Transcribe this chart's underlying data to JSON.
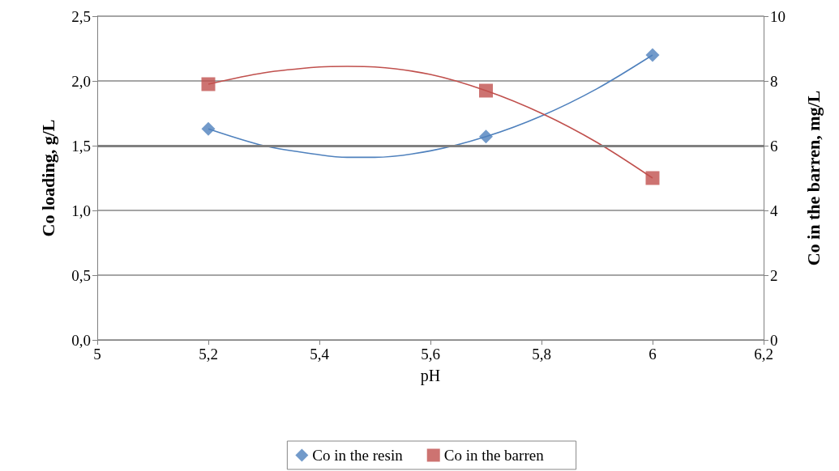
{
  "chart_data": {
    "type": "scatter",
    "xlabel": "pH",
    "ylabel": "Co loading, g/L",
    "y2label": "Co in the barren, mg/L",
    "xlim": [
      5,
      6.2
    ],
    "xticks": [
      5,
      {
        "value": 5.2,
        "label": "5,2"
      },
      {
        "value": 5.4,
        "label": "5,4"
      },
      {
        "value": 5.6,
        "label": "5,6"
      },
      {
        "value": 5.8,
        "label": "5,8"
      },
      6,
      {
        "value": 6.2,
        "label": "6,2"
      }
    ],
    "ylim": [
      0,
      2.5
    ],
    "yticks": [
      {
        "value": 0,
        "label": "0,0"
      },
      {
        "value": 0.5,
        "label": "0,5"
      },
      {
        "value": 1,
        "label": "1,0"
      },
      {
        "value": 1.5,
        "label": "1,5"
      },
      {
        "value": 2,
        "label": "2,0"
      },
      {
        "value": 2.5,
        "label": "2,5"
      }
    ],
    "y2lim": [
      0,
      10
    ],
    "y2ticks": [
      0,
      2,
      4,
      6,
      8,
      10
    ],
    "grid": "y",
    "legend": "bottom",
    "ref_lines": [
      {
        "axis": "y",
        "value": 1.5,
        "color": "#808080"
      }
    ],
    "series": [
      {
        "name": "Co in the resin",
        "marker": "diamond",
        "color": "#4f81bd",
        "x": [
          5.2,
          5.7,
          6
        ],
        "values": [
          1.63,
          1.57,
          2.2
        ]
      },
      {
        "name": "Co in the barren",
        "marker": "square",
        "color": "#c0504d",
        "axis": "y2",
        "x": [
          5.2,
          5.7,
          6
        ],
        "values": [
          7.9,
          7.7,
          5.0
        ]
      },
      {
        "type": "line",
        "color": "#4f81bd",
        "marker": "none",
        "x": [
          5.2,
          5.3,
          5.4,
          5.45,
          5.5,
          5.6,
          5.7,
          5.8,
          5.9,
          6
        ],
        "values": [
          1.63,
          1.5,
          1.43,
          1.41,
          1.41,
          1.46,
          1.57,
          1.73,
          1.94,
          2.2
        ]
      },
      {
        "type": "line",
        "color": "#c0504d",
        "marker": "none",
        "axis": "y2",
        "x": [
          5.2,
          5.3,
          5.4,
          5.45,
          5.5,
          5.6,
          5.7,
          5.8,
          5.9,
          6
        ],
        "values": [
          7.9,
          8.25,
          8.43,
          8.45,
          8.43,
          8.2,
          7.7,
          7.0,
          6.1,
          5.0
        ]
      }
    ]
  }
}
